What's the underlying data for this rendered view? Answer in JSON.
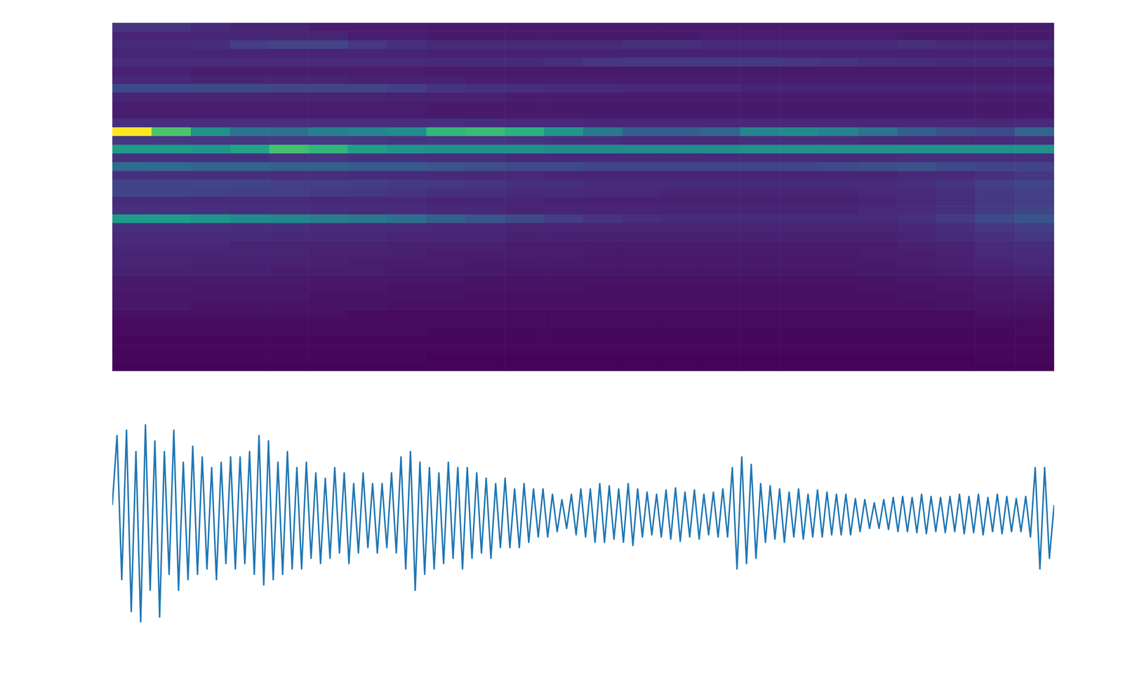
{
  "chart_data": [
    {
      "type": "heatmap",
      "tick_labels": false,
      "zlim": [
        0,
        1
      ],
      "z": [
        [
          0.15,
          0.15,
          0.12,
          0.1,
          0.1,
          0.08,
          0.08,
          0.08,
          0.07,
          0.07,
          0.07,
          0.07,
          0.07,
          0.07,
          0.07,
          0.07,
          0.07,
          0.07,
          0.07,
          0.07,
          0.07,
          0.07,
          0.07,
          0.07
        ],
        [
          0.1,
          0.1,
          0.1,
          0.1,
          0.1,
          0.1,
          0.08,
          0.08,
          0.07,
          0.07,
          0.07,
          0.07,
          0.07,
          0.07,
          0.07,
          0.08,
          0.08,
          0.08,
          0.08,
          0.08,
          0.07,
          0.07,
          0.07,
          0.07
        ],
        [
          0.12,
          0.12,
          0.13,
          0.18,
          0.2,
          0.2,
          0.16,
          0.14,
          0.12,
          0.12,
          0.12,
          0.12,
          0.12,
          0.14,
          0.14,
          0.12,
          0.12,
          0.12,
          0.12,
          0.12,
          0.14,
          0.12,
          0.12,
          0.12
        ],
        [
          0.1,
          0.1,
          0.1,
          0.1,
          0.1,
          0.1,
          0.1,
          0.1,
          0.09,
          0.09,
          0.09,
          0.09,
          0.09,
          0.09,
          0.09,
          0.09,
          0.09,
          0.09,
          0.09,
          0.09,
          0.09,
          0.09,
          0.09,
          0.09
        ],
        [
          0.12,
          0.12,
          0.12,
          0.12,
          0.12,
          0.12,
          0.12,
          0.12,
          0.12,
          0.12,
          0.12,
          0.14,
          0.16,
          0.17,
          0.17,
          0.17,
          0.17,
          0.16,
          0.15,
          0.14,
          0.13,
          0.12,
          0.12,
          0.12
        ],
        [
          0.09,
          0.09,
          0.08,
          0.08,
          0.08,
          0.08,
          0.08,
          0.08,
          0.07,
          0.07,
          0.07,
          0.07,
          0.07,
          0.07,
          0.07,
          0.07,
          0.07,
          0.07,
          0.07,
          0.07,
          0.07,
          0.07,
          0.07,
          0.07
        ],
        [
          0.11,
          0.11,
          0.1,
          0.1,
          0.1,
          0.1,
          0.09,
          0.09,
          0.09,
          0.08,
          0.08,
          0.08,
          0.08,
          0.08,
          0.08,
          0.08,
          0.08,
          0.08,
          0.08,
          0.08,
          0.08,
          0.08,
          0.08,
          0.08
        ],
        [
          0.22,
          0.22,
          0.22,
          0.22,
          0.2,
          0.2,
          0.2,
          0.18,
          0.15,
          0.14,
          0.13,
          0.12,
          0.12,
          0.11,
          0.11,
          0.11,
          0.1,
          0.1,
          0.1,
          0.1,
          0.1,
          0.1,
          0.1,
          0.1
        ],
        [
          0.1,
          0.1,
          0.1,
          0.1,
          0.1,
          0.1,
          0.1,
          0.09,
          0.09,
          0.09,
          0.08,
          0.08,
          0.08,
          0.08,
          0.08,
          0.08,
          0.08,
          0.08,
          0.08,
          0.08,
          0.08,
          0.08,
          0.08,
          0.08
        ],
        [
          0.08,
          0.08,
          0.08,
          0.08,
          0.08,
          0.08,
          0.08,
          0.08,
          0.07,
          0.07,
          0.07,
          0.07,
          0.07,
          0.07,
          0.07,
          0.07,
          0.07,
          0.07,
          0.07,
          0.07,
          0.07,
          0.07,
          0.07,
          0.07
        ],
        [
          0.08,
          0.08,
          0.08,
          0.08,
          0.08,
          0.08,
          0.08,
          0.08,
          0.07,
          0.07,
          0.07,
          0.07,
          0.07,
          0.07,
          0.07,
          0.07,
          0.07,
          0.07,
          0.07,
          0.07,
          0.07,
          0.07,
          0.07,
          0.07
        ],
        [
          0.14,
          0.14,
          0.14,
          0.14,
          0.14,
          0.14,
          0.14,
          0.14,
          0.14,
          0.13,
          0.12,
          0.12,
          0.11,
          0.11,
          0.11,
          0.11,
          0.11,
          0.11,
          0.11,
          0.11,
          0.11,
          0.11,
          0.11,
          0.12
        ],
        [
          1.0,
          0.72,
          0.5,
          0.38,
          0.36,
          0.42,
          0.45,
          0.48,
          0.66,
          0.68,
          0.64,
          0.52,
          0.4,
          0.3,
          0.3,
          0.32,
          0.45,
          0.47,
          0.44,
          0.38,
          0.3,
          0.24,
          0.22,
          0.32
        ],
        [
          0.16,
          0.16,
          0.16,
          0.16,
          0.17,
          0.17,
          0.16,
          0.15,
          0.16,
          0.16,
          0.15,
          0.14,
          0.13,
          0.12,
          0.12,
          0.12,
          0.13,
          0.13,
          0.13,
          0.12,
          0.12,
          0.12,
          0.12,
          0.14
        ],
        [
          0.55,
          0.55,
          0.52,
          0.58,
          0.7,
          0.66,
          0.56,
          0.52,
          0.5,
          0.5,
          0.5,
          0.48,
          0.48,
          0.47,
          0.47,
          0.48,
          0.5,
          0.5,
          0.5,
          0.5,
          0.5,
          0.5,
          0.5,
          0.5
        ],
        [
          0.14,
          0.14,
          0.14,
          0.14,
          0.15,
          0.15,
          0.14,
          0.14,
          0.13,
          0.13,
          0.12,
          0.12,
          0.12,
          0.12,
          0.12,
          0.12,
          0.12,
          0.12,
          0.12,
          0.12,
          0.13,
          0.13,
          0.13,
          0.13
        ],
        [
          0.35,
          0.34,
          0.32,
          0.32,
          0.3,
          0.3,
          0.28,
          0.28,
          0.26,
          0.24,
          0.22,
          0.22,
          0.2,
          0.2,
          0.2,
          0.2,
          0.2,
          0.21,
          0.22,
          0.24,
          0.25,
          0.22,
          0.2,
          0.2
        ],
        [
          0.14,
          0.14,
          0.13,
          0.13,
          0.13,
          0.13,
          0.12,
          0.12,
          0.12,
          0.11,
          0.11,
          0.1,
          0.1,
          0.1,
          0.1,
          0.1,
          0.1,
          0.1,
          0.1,
          0.1,
          0.11,
          0.12,
          0.14,
          0.16
        ],
        [
          0.2,
          0.2,
          0.2,
          0.2,
          0.18,
          0.18,
          0.18,
          0.17,
          0.16,
          0.15,
          0.14,
          0.13,
          0.12,
          0.12,
          0.12,
          0.12,
          0.12,
          0.12,
          0.12,
          0.12,
          0.13,
          0.15,
          0.18,
          0.2
        ],
        [
          0.2,
          0.2,
          0.19,
          0.18,
          0.18,
          0.17,
          0.16,
          0.15,
          0.14,
          0.13,
          0.12,
          0.12,
          0.11,
          0.11,
          0.1,
          0.1,
          0.1,
          0.1,
          0.1,
          0.11,
          0.12,
          0.14,
          0.17,
          0.19
        ],
        [
          0.12,
          0.12,
          0.12,
          0.12,
          0.12,
          0.11,
          0.11,
          0.11,
          0.1,
          0.1,
          0.1,
          0.09,
          0.09,
          0.09,
          0.09,
          0.09,
          0.09,
          0.09,
          0.09,
          0.1,
          0.11,
          0.13,
          0.16,
          0.18
        ],
        [
          0.14,
          0.14,
          0.14,
          0.13,
          0.13,
          0.13,
          0.12,
          0.12,
          0.11,
          0.11,
          0.1,
          0.1,
          0.1,
          0.1,
          0.1,
          0.1,
          0.1,
          0.1,
          0.1,
          0.11,
          0.12,
          0.14,
          0.17,
          0.2
        ],
        [
          0.55,
          0.55,
          0.52,
          0.48,
          0.46,
          0.42,
          0.4,
          0.36,
          0.3,
          0.26,
          0.22,
          0.18,
          0.15,
          0.13,
          0.12,
          0.12,
          0.12,
          0.12,
          0.12,
          0.12,
          0.14,
          0.17,
          0.22,
          0.26
        ],
        [
          0.14,
          0.14,
          0.14,
          0.13,
          0.13,
          0.12,
          0.12,
          0.12,
          0.11,
          0.11,
          0.1,
          0.1,
          0.1,
          0.1,
          0.1,
          0.1,
          0.1,
          0.1,
          0.1,
          0.1,
          0.11,
          0.13,
          0.16,
          0.18
        ],
        [
          0.12,
          0.12,
          0.12,
          0.12,
          0.11,
          0.11,
          0.11,
          0.1,
          0.1,
          0.1,
          0.09,
          0.09,
          0.09,
          0.09,
          0.09,
          0.09,
          0.09,
          0.09,
          0.09,
          0.09,
          0.1,
          0.12,
          0.14,
          0.16
        ],
        [
          0.11,
          0.11,
          0.11,
          0.1,
          0.1,
          0.1,
          0.1,
          0.09,
          0.09,
          0.09,
          0.08,
          0.08,
          0.08,
          0.08,
          0.08,
          0.08,
          0.08,
          0.08,
          0.08,
          0.08,
          0.09,
          0.1,
          0.12,
          0.13
        ],
        [
          0.1,
          0.1,
          0.1,
          0.1,
          0.1,
          0.09,
          0.09,
          0.09,
          0.08,
          0.08,
          0.08,
          0.08,
          0.07,
          0.07,
          0.07,
          0.07,
          0.07,
          0.07,
          0.07,
          0.08,
          0.08,
          0.09,
          0.11,
          0.12
        ],
        [
          0.1,
          0.1,
          0.09,
          0.09,
          0.09,
          0.09,
          0.08,
          0.08,
          0.08,
          0.07,
          0.07,
          0.07,
          0.07,
          0.07,
          0.07,
          0.07,
          0.07,
          0.07,
          0.07,
          0.07,
          0.08,
          0.09,
          0.1,
          0.11
        ],
        [
          0.09,
          0.09,
          0.09,
          0.09,
          0.08,
          0.08,
          0.08,
          0.07,
          0.07,
          0.07,
          0.06,
          0.06,
          0.06,
          0.06,
          0.06,
          0.06,
          0.06,
          0.06,
          0.06,
          0.07,
          0.07,
          0.08,
          0.09,
          0.1
        ],
        [
          0.07,
          0.07,
          0.07,
          0.07,
          0.07,
          0.06,
          0.06,
          0.06,
          0.06,
          0.05,
          0.05,
          0.05,
          0.05,
          0.05,
          0.05,
          0.05,
          0.05,
          0.05,
          0.05,
          0.05,
          0.06,
          0.06,
          0.07,
          0.08
        ],
        [
          0.07,
          0.07,
          0.06,
          0.06,
          0.06,
          0.06,
          0.06,
          0.05,
          0.05,
          0.05,
          0.05,
          0.05,
          0.04,
          0.04,
          0.04,
          0.04,
          0.04,
          0.04,
          0.04,
          0.05,
          0.05,
          0.06,
          0.06,
          0.07
        ],
        [
          0.06,
          0.06,
          0.06,
          0.06,
          0.06,
          0.05,
          0.05,
          0.05,
          0.05,
          0.04,
          0.04,
          0.04,
          0.04,
          0.04,
          0.04,
          0.04,
          0.04,
          0.04,
          0.04,
          0.04,
          0.05,
          0.05,
          0.06,
          0.06
        ],
        [
          0.06,
          0.06,
          0.05,
          0.05,
          0.05,
          0.05,
          0.05,
          0.04,
          0.04,
          0.04,
          0.04,
          0.04,
          0.04,
          0.04,
          0.04,
          0.04,
          0.04,
          0.04,
          0.04,
          0.04,
          0.04,
          0.05,
          0.05,
          0.05
        ],
        [
          0.04,
          0.04,
          0.04,
          0.04,
          0.04,
          0.04,
          0.03,
          0.03,
          0.03,
          0.03,
          0.03,
          0.03,
          0.03,
          0.03,
          0.03,
          0.03,
          0.03,
          0.03,
          0.03,
          0.03,
          0.03,
          0.03,
          0.04,
          0.04
        ],
        [
          0.03,
          0.03,
          0.03,
          0.03,
          0.03,
          0.03,
          0.03,
          0.03,
          0.03,
          0.03,
          0.03,
          0.03,
          0.03,
          0.03,
          0.03,
          0.03,
          0.03,
          0.03,
          0.03,
          0.03,
          0.03,
          0.03,
          0.03,
          0.03
        ],
        [
          0.03,
          0.03,
          0.03,
          0.03,
          0.03,
          0.03,
          0.03,
          0.03,
          0.02,
          0.02,
          0.02,
          0.02,
          0.02,
          0.02,
          0.02,
          0.02,
          0.02,
          0.02,
          0.02,
          0.02,
          0.02,
          0.02,
          0.02,
          0.03
        ],
        [
          0.02,
          0.02,
          0.02,
          0.02,
          0.02,
          0.02,
          0.02,
          0.02,
          0.02,
          0.02,
          0.02,
          0.02,
          0.02,
          0.02,
          0.02,
          0.02,
          0.02,
          0.02,
          0.02,
          0.02,
          0.02,
          0.02,
          0.02,
          0.02
        ],
        [
          0.02,
          0.02,
          0.02,
          0.02,
          0.02,
          0.02,
          0.02,
          0.02,
          0.02,
          0.02,
          0.02,
          0.02,
          0.02,
          0.02,
          0.02,
          0.02,
          0.02,
          0.02,
          0.02,
          0.02,
          0.02,
          0.02,
          0.02,
          0.02
        ],
        [
          0.02,
          0.02,
          0.02,
          0.02,
          0.02,
          0.02,
          0.02,
          0.02,
          0.01,
          0.01,
          0.01,
          0.01,
          0.01,
          0.01,
          0.01,
          0.01,
          0.01,
          0.01,
          0.01,
          0.01,
          0.01,
          0.01,
          0.02,
          0.02
        ],
        [
          0.01,
          0.01,
          0.01,
          0.01,
          0.01,
          0.01,
          0.01,
          0.01,
          0.01,
          0.01,
          0.01,
          0.01,
          0.01,
          0.01,
          0.01,
          0.01,
          0.01,
          0.01,
          0.01,
          0.01,
          0.01,
          0.01,
          0.01,
          0.01
        ]
      ]
    },
    {
      "type": "line",
      "tick_labels": false,
      "color": "#1f77b4",
      "xlim": [
        0,
        199
      ],
      "ylim": [
        -1,
        1
      ],
      "values": [
        0.1,
        0.75,
        -0.6,
        0.8,
        -0.9,
        0.6,
        -1.0,
        0.85,
        -0.7,
        0.7,
        -0.95,
        0.6,
        -0.55,
        0.8,
        -0.7,
        0.5,
        -0.6,
        0.65,
        -0.55,
        0.55,
        -0.5,
        0.45,
        -0.6,
        0.5,
        -0.45,
        0.55,
        -0.5,
        0.55,
        -0.45,
        0.6,
        -0.55,
        0.75,
        -0.65,
        0.7,
        -0.6,
        0.5,
        -0.55,
        0.6,
        -0.5,
        0.45,
        -0.5,
        0.5,
        -0.4,
        0.4,
        -0.45,
        0.35,
        -0.4,
        0.45,
        -0.35,
        0.4,
        -0.45,
        0.3,
        -0.35,
        0.4,
        -0.3,
        0.3,
        -0.35,
        0.3,
        -0.3,
        0.4,
        -0.35,
        0.55,
        -0.5,
        0.6,
        -0.7,
        0.5,
        -0.55,
        0.45,
        -0.5,
        0.4,
        -0.45,
        0.5,
        -0.4,
        0.45,
        -0.5,
        0.45,
        -0.4,
        0.4,
        -0.35,
        0.35,
        -0.4,
        0.3,
        -0.3,
        0.35,
        -0.3,
        0.25,
        -0.3,
        0.3,
        -0.25,
        0.25,
        -0.2,
        0.25,
        -0.2,
        0.2,
        -0.15,
        0.15,
        -0.12,
        0.2,
        -0.18,
        0.25,
        -0.2,
        0.25,
        -0.25,
        0.3,
        -0.25,
        0.28,
        -0.22,
        0.25,
        -0.25,
        0.3,
        -0.28,
        0.25,
        -0.2,
        0.22,
        -0.18,
        0.2,
        -0.2,
        0.24,
        -0.22,
        0.26,
        -0.24,
        0.22,
        -0.2,
        0.24,
        -0.22,
        0.2,
        -0.18,
        0.22,
        -0.2,
        0.25,
        -0.2,
        0.45,
        -0.5,
        0.55,
        -0.45,
        0.48,
        -0.4,
        0.3,
        -0.25,
        0.28,
        -0.22,
        0.25,
        -0.25,
        0.22,
        -0.2,
        0.25,
        -0.22,
        0.2,
        -0.2,
        0.24,
        -0.2,
        0.22,
        -0.18,
        0.2,
        -0.18,
        0.2,
        -0.18,
        0.16,
        -0.15,
        0.15,
        -0.12,
        0.12,
        -0.12,
        0.15,
        -0.13,
        0.17,
        -0.15,
        0.18,
        -0.15,
        0.17,
        -0.16,
        0.2,
        -0.17,
        0.18,
        -0.15,
        0.17,
        -0.16,
        0.18,
        -0.15,
        0.2,
        -0.17,
        0.18,
        -0.16,
        0.2,
        -0.18,
        0.17,
        -0.15,
        0.2,
        -0.17,
        0.18,
        -0.15,
        0.16,
        -0.15,
        0.18,
        -0.2,
        0.45,
        -0.5,
        0.45,
        -0.4,
        0.1
      ]
    }
  ]
}
